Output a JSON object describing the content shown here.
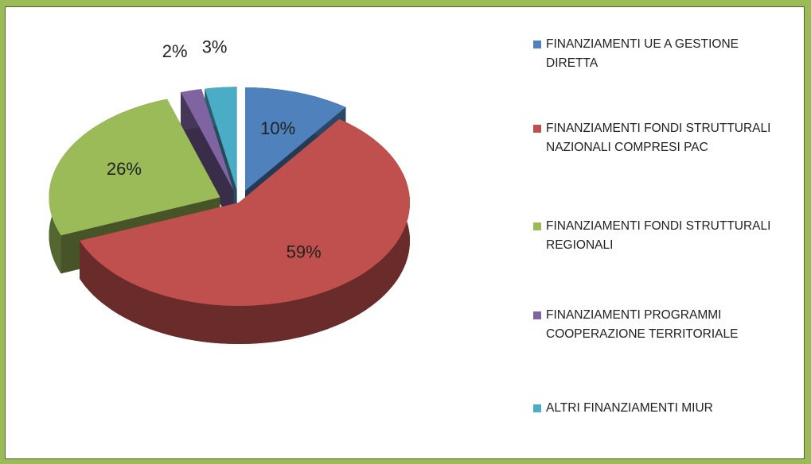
{
  "chart_data": {
    "type": "pie",
    "categories": [
      "FINANZIAMENTI UE A GESTIONE DIRETTA",
      "FINANZIAMENTI FONDI STRUTTURALI NAZIONALI COMPRESI PAC",
      "FINANZIAMENTI FONDI STRUTTURALI REGIONALI",
      "FINANZIAMENTI PROGRAMMI COOPERAZIONE TERRITORIALE",
      "ALTRI FINANZIAMENTI MIUR"
    ],
    "values": [
      10,
      59,
      26,
      2,
      3
    ],
    "value_labels": [
      "10%",
      "59%",
      "26%",
      "2%",
      "3%"
    ],
    "colors": [
      "#4f81bd",
      "#c0504d",
      "#9bbb59",
      "#8064a2",
      "#4bacc6"
    ],
    "legend": "right"
  }
}
